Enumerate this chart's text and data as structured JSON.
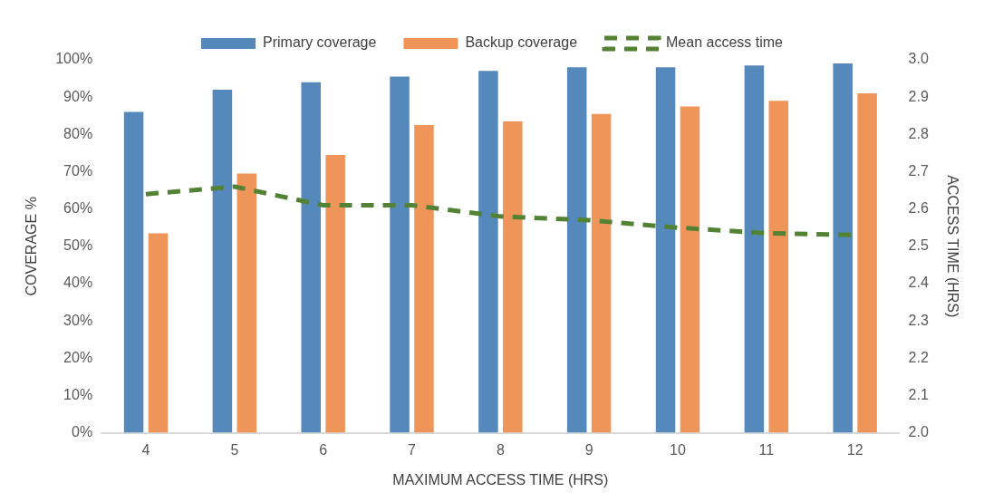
{
  "chart_data": {
    "type": "bar",
    "xlabel": "MAXIMUM ACCESS TIME (HRS)",
    "ylabel": "COVERAGE %",
    "y2label": "ACCESS TIME (HRS)",
    "categories": [
      "4",
      "5",
      "6",
      "7",
      "8",
      "9",
      "10",
      "11",
      "12"
    ],
    "series": [
      {
        "name": "Primary coverage",
        "color": "#5689bb",
        "values": [
          86,
          92,
          94,
          95.5,
          97,
          98,
          98,
          98.5,
          99
        ]
      },
      {
        "name": "Backup coverage",
        "color": "#f0955a",
        "values": [
          53.5,
          69.5,
          74.5,
          82.5,
          83.5,
          85.5,
          87.5,
          89,
          91
        ]
      },
      {
        "name": "Mean access time",
        "type": "line",
        "axis": "y2",
        "color": "#548235",
        "line_style": "dashed",
        "marker": "none",
        "values": [
          2.64,
          2.66,
          2.61,
          2.61,
          2.58,
          2.57,
          2.55,
          2.535,
          2.53
        ]
      }
    ],
    "ylim": [
      0,
      100
    ],
    "yticks": [
      {
        "value": 0,
        "label": "0%"
      },
      {
        "value": 10,
        "label": "10%"
      },
      {
        "value": 20,
        "label": "20%"
      },
      {
        "value": 30,
        "label": "30%"
      },
      {
        "value": 40,
        "label": "40%"
      },
      {
        "value": 50,
        "label": "50%"
      },
      {
        "value": 60,
        "label": "60%"
      },
      {
        "value": 70,
        "label": "70%"
      },
      {
        "value": 80,
        "label": "80%"
      },
      {
        "value": 90,
        "label": "90%"
      },
      {
        "value": 100,
        "label": "100%"
      }
    ],
    "y2lim": [
      2,
      3
    ],
    "y2ticks": [
      {
        "value": 2,
        "label": "2.0"
      },
      2.1,
      2.2,
      2.3,
      2.4,
      2.5,
      2.6,
      2.7,
      2.8,
      2.9,
      {
        "value": 3,
        "label": "3.0"
      }
    ],
    "legend": "top",
    "grid": false
  }
}
